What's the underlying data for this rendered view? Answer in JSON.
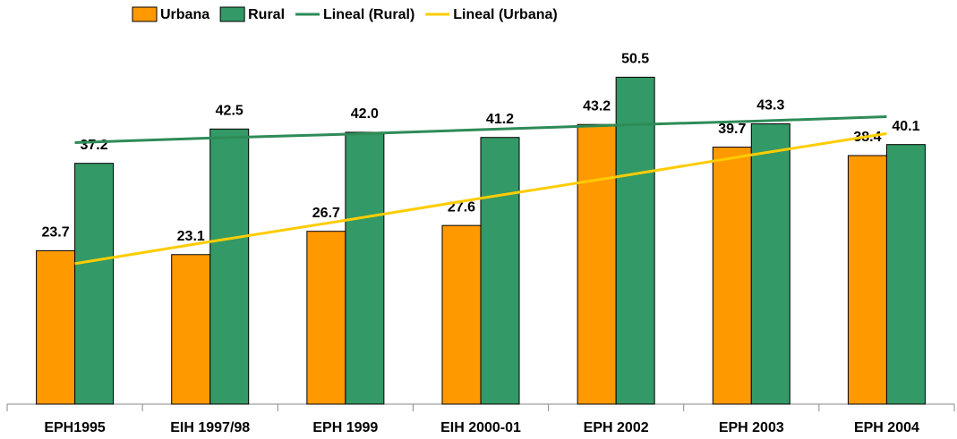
{
  "chart_data": {
    "type": "bar",
    "categories": [
      "EPH1995",
      "EIH 1997/98",
      "EPH 1999",
      "EIH 2000-01",
      "EPH 2002",
      "EPH 2003",
      "EPH 2004"
    ],
    "series": [
      {
        "name": "Urbana",
        "type": "bar",
        "color": "#ff9900",
        "values": [
          23.7,
          23.1,
          26.7,
          27.6,
          43.2,
          39.7,
          38.4
        ],
        "value_labels": [
          "23.7",
          "23.1",
          "26.7",
          "27.6",
          "43.2",
          "39.7",
          "38.4"
        ]
      },
      {
        "name": "Rural",
        "type": "bar",
        "color": "#339966",
        "values": [
          37.2,
          42.5,
          42.0,
          41.2,
          50.5,
          43.3,
          40.1
        ],
        "value_labels": [
          "37.2",
          "42.5",
          "42.0",
          "41.2",
          "50.5",
          "43.3",
          "40.1"
        ]
      },
      {
        "name": "Lineal (Rural)",
        "type": "line",
        "color": "#2e8b57",
        "values": [
          40.4,
          41.1,
          41.7,
          42.4,
          43.1,
          43.7,
          44.4
        ]
      },
      {
        "name": "Lineal (Urbana)",
        "type": "line",
        "color": "#ffcc00",
        "values": [
          21.7,
          25.1,
          28.4,
          31.8,
          35.1,
          38.5,
          41.8
        ]
      }
    ],
    "ylim": [
      0,
      60
    ],
    "legend": "top"
  }
}
